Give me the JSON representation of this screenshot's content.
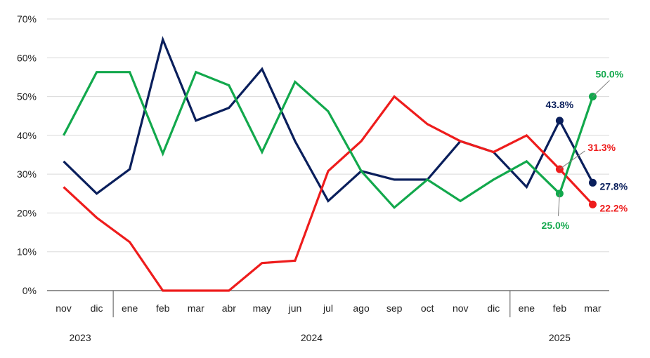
{
  "chart_data": {
    "type": "line",
    "categories": [
      "nov",
      "dic",
      "ene",
      "feb",
      "mar",
      "abr",
      "may",
      "jun",
      "jul",
      "ago",
      "sep",
      "oct",
      "nov",
      "dic",
      "ene",
      "feb",
      "mar"
    ],
    "year_groups": [
      {
        "label": "2023",
        "start": 0,
        "end": 1
      },
      {
        "label": "2024",
        "start": 2,
        "end": 13
      },
      {
        "label": "2025",
        "start": 14,
        "end": 16
      }
    ],
    "ylim": [
      0,
      70
    ],
    "yticks": [
      0,
      10,
      20,
      30,
      40,
      50,
      60,
      70
    ],
    "ytick_labels": [
      "0%",
      "10%",
      "20%",
      "30%",
      "40%",
      "50%",
      "60%",
      "70%"
    ],
    "grid": true,
    "series": [
      {
        "color": "#0a1f5c",
        "values": [
          33.3,
          25.0,
          31.3,
          64.7,
          43.8,
          47.1,
          57.1,
          38.5,
          23.1,
          30.8,
          28.6,
          28.6,
          38.5,
          35.7,
          26.7,
          43.8,
          27.8
        ]
      },
      {
        "color": "#ee1c1c",
        "values": [
          26.7,
          18.8,
          12.5,
          0,
          0,
          0,
          7.1,
          7.7,
          30.8,
          38.5,
          50.0,
          42.9,
          38.5,
          35.7,
          40.0,
          31.3,
          22.2
        ]
      },
      {
        "color": "#12a84c",
        "values": [
          40.0,
          56.3,
          56.3,
          35.3,
          56.3,
          52.9,
          35.7,
          53.8,
          46.2,
          30.8,
          21.4,
          28.6,
          23.1,
          28.6,
          33.3,
          25.0,
          50.0
        ]
      }
    ],
    "markers": [
      {
        "series": 0,
        "index": 15,
        "label": "43.8%"
      },
      {
        "series": 0,
        "index": 16,
        "label": "27.8%"
      },
      {
        "series": 1,
        "index": 15,
        "label": "31.3%"
      },
      {
        "series": 1,
        "index": 16,
        "label": "22.2%"
      },
      {
        "series": 2,
        "index": 15,
        "label": "25.0%"
      },
      {
        "series": 2,
        "index": 16,
        "label": "50.0%"
      }
    ]
  }
}
